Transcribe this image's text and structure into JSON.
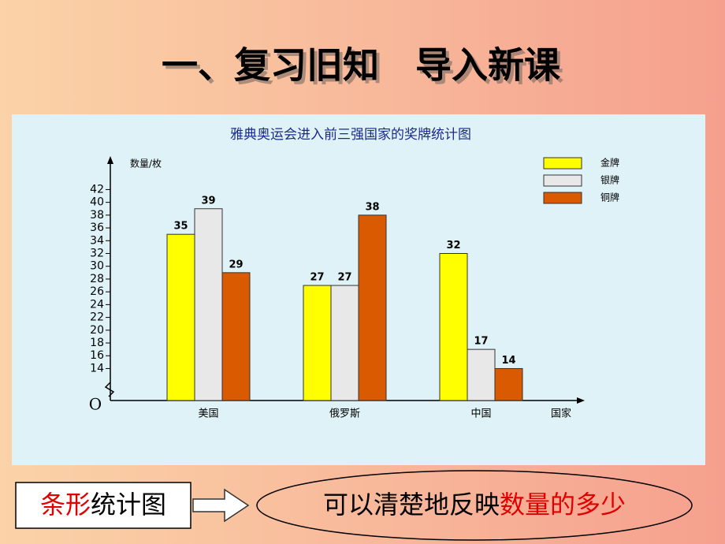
{
  "slide": {
    "title": "一、复习旧知　导入新课"
  },
  "chart_data": {
    "type": "bar",
    "title": "雅典奥运会进入前三强国家的奖牌统计图",
    "y_label": "数量/枚",
    "x_label": "国家",
    "origin_label": "O",
    "categories": [
      "美国",
      "俄罗斯",
      "中国"
    ],
    "series": [
      {
        "name": "金牌",
        "color": "#ffff00",
        "values": [
          35,
          27,
          32
        ]
      },
      {
        "name": "银牌",
        "color": "#e8e8e8",
        "values": [
          39,
          27,
          17
        ]
      },
      {
        "name": "铜牌",
        "color": "#d95a00",
        "values": [
          29,
          38,
          14
        ]
      }
    ],
    "ylim": [
      9,
      46
    ],
    "yticks": [
      14,
      16,
      18,
      20,
      22,
      24,
      26,
      28,
      30,
      32,
      34,
      36,
      38,
      40,
      42
    ],
    "legend": "top-right"
  },
  "footer": {
    "box": [
      "条形",
      "统计图"
    ],
    "conclusion": [
      "可以清楚地反映",
      "数量的多少"
    ]
  }
}
